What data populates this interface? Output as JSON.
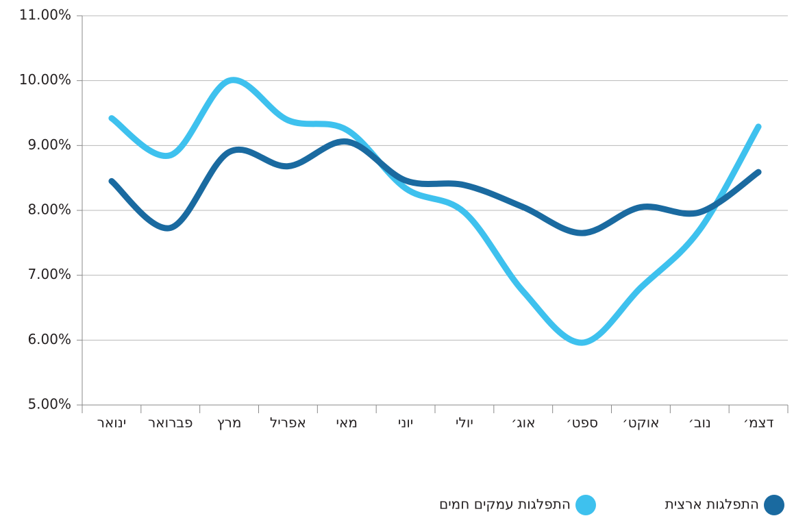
{
  "chart_data": {
    "type": "line",
    "categories": [
      "ינואר",
      "פברואר",
      "מרץ",
      "אפריל",
      "מאי",
      "יוני",
      "יולי",
      "אוג׳",
      "ספט׳",
      "אוקט׳",
      "נוב׳",
      "דצמ׳"
    ],
    "series": [
      {
        "name": "התפלגות ארצית",
        "color": "#1a6aa0",
        "values": [
          8.45,
          7.73,
          8.9,
          8.68,
          9.06,
          8.46,
          8.39,
          8.05,
          7.65,
          8.05,
          7.97,
          8.59
        ]
      },
      {
        "name": "התפלגות עמקים חמים",
        "color": "#3ec1ee",
        "values": [
          9.42,
          8.85,
          10.0,
          9.39,
          9.24,
          8.34,
          7.97,
          6.75,
          5.96,
          6.81,
          7.7,
          9.29
        ]
      }
    ],
    "ylim": [
      5,
      11
    ],
    "yticks": [
      {
        "value": 5,
        "label": "5.00%"
      },
      {
        "value": 6,
        "label": "6.00%"
      },
      {
        "value": 7,
        "label": "7.00%"
      },
      {
        "value": 8,
        "label": "8.00%"
      },
      {
        "value": 9,
        "label": "9.00%"
      },
      {
        "value": 10,
        "label": "10.00%"
      },
      {
        "value": 11,
        "label": "11.00%"
      }
    ],
    "grid": true,
    "legend": "bottom"
  }
}
